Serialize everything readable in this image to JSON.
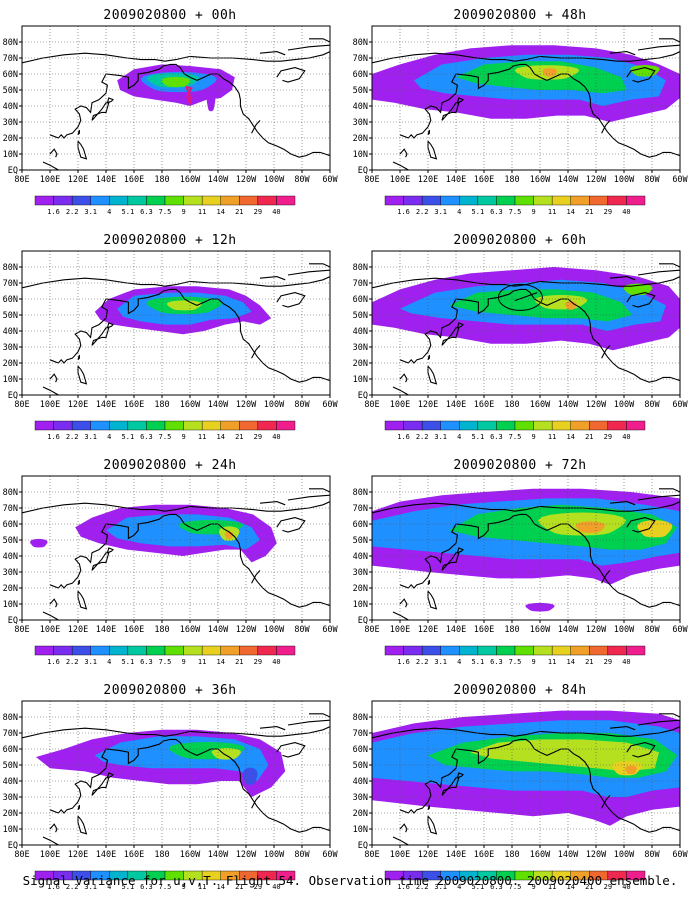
{
  "panels": [
    {
      "title": "2009020800 + 00h",
      "key": "h00"
    },
    {
      "title": "2009020800 + 48h",
      "key": "h48"
    },
    {
      "title": "2009020800 + 12h",
      "key": "h12"
    },
    {
      "title": "2009020800 + 60h",
      "key": "h60"
    },
    {
      "title": "2009020800 + 24h",
      "key": "h24"
    },
    {
      "title": "2009020800 + 72h",
      "key": "h72"
    },
    {
      "title": "2009020800 + 36h",
      "key": "h36"
    },
    {
      "title": "2009020800 + 84h",
      "key": "h84"
    }
  ],
  "lat_labels": [
    "80N",
    "70N",
    "60N",
    "50N",
    "40N",
    "30N",
    "20N",
    "10N",
    "EQ"
  ],
  "lon_labels": [
    "80E",
    "100E",
    "120E",
    "140E",
    "160E",
    "180",
    "160W",
    "140W",
    "120W",
    "100W",
    "80W",
    "60W"
  ],
  "colorbar": {
    "labels": [
      "1.6",
      "2.2",
      "3.1",
      "4",
      "5.1",
      "6.3",
      "7.5",
      "9",
      "11",
      "14",
      "21",
      "29",
      "40"
    ],
    "colors": [
      "#a020f0",
      "#7a2cf0",
      "#3c4fe8",
      "#1e90ff",
      "#00b4d0",
      "#00c8a0",
      "#00d050",
      "#60e000",
      "#b4e020",
      "#e8d020",
      "#f0a028",
      "#f06830",
      "#f02850",
      "#f01e8c"
    ]
  },
  "caption": "Signal Variance for u,v,T. Flight 54. Observation time 2009020800. 2009020400 ensemble."
}
